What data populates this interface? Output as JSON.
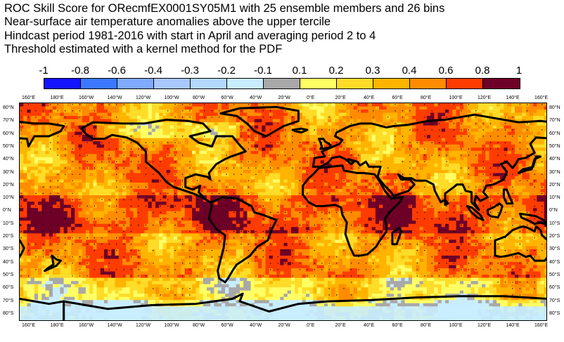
{
  "titles": [
    "ROC Skill Score for ORecmfEX0001SY05M1 with 25 ensemble members and 26 bins",
    "Near-surface air temperature anomalies above the upper tercile",
    "Hindcast period 1981-2016 with start in April and averaging period  2 to  4",
    "Threshold estimated with a kernel method for the PDF"
  ],
  "colorbar": {
    "labels": [
      "-1",
      "-0.8",
      "-0.6",
      "-0.4",
      "-0.3",
      "-0.2",
      "-0.1",
      "0.1",
      "0.2",
      "0.3",
      "0.4",
      "0.6",
      "0.8",
      "1"
    ],
    "colors": [
      "#1414ff",
      "#3a78ff",
      "#7eaaff",
      "#a9c8ff",
      "#b4d9ff",
      "#c8edff",
      "#a8a8a8",
      "#ffff64",
      "#ffdc28",
      "#ffb400",
      "#ff8c00",
      "#ff3c00",
      "#6e0028"
    ]
  },
  "axes": {
    "lon_labels": [
      "160°E",
      "180°E",
      "160°W",
      "140°W",
      "120°W",
      "100°W",
      "80°W",
      "60°W",
      "40°W",
      "20°W",
      "0°E",
      "20°E",
      "40°E",
      "60°E",
      "80°E",
      "100°E",
      "120°E",
      "140°E",
      "160°E"
    ],
    "lat_labels": [
      "80°N",
      "70°N",
      "60°N",
      "50°N",
      "40°N",
      "30°N",
      "20°N",
      "10°N",
      "0°N",
      "10°S",
      "20°S",
      "30°S",
      "40°S",
      "50°S",
      "60°S",
      "70°S",
      "80°S"
    ]
  },
  "map": {
    "projection": "equirectangular",
    "lon_range": [
      150,
      510
    ],
    "lat_range": [
      -86,
      86
    ],
    "dominant_colors": [
      "#ffff64",
      "#ffdc28",
      "#ffb400",
      "#ff8c00",
      "#ff3c00",
      "#6e0028"
    ],
    "significance_dots": true,
    "coastline_color": "#000000"
  }
}
